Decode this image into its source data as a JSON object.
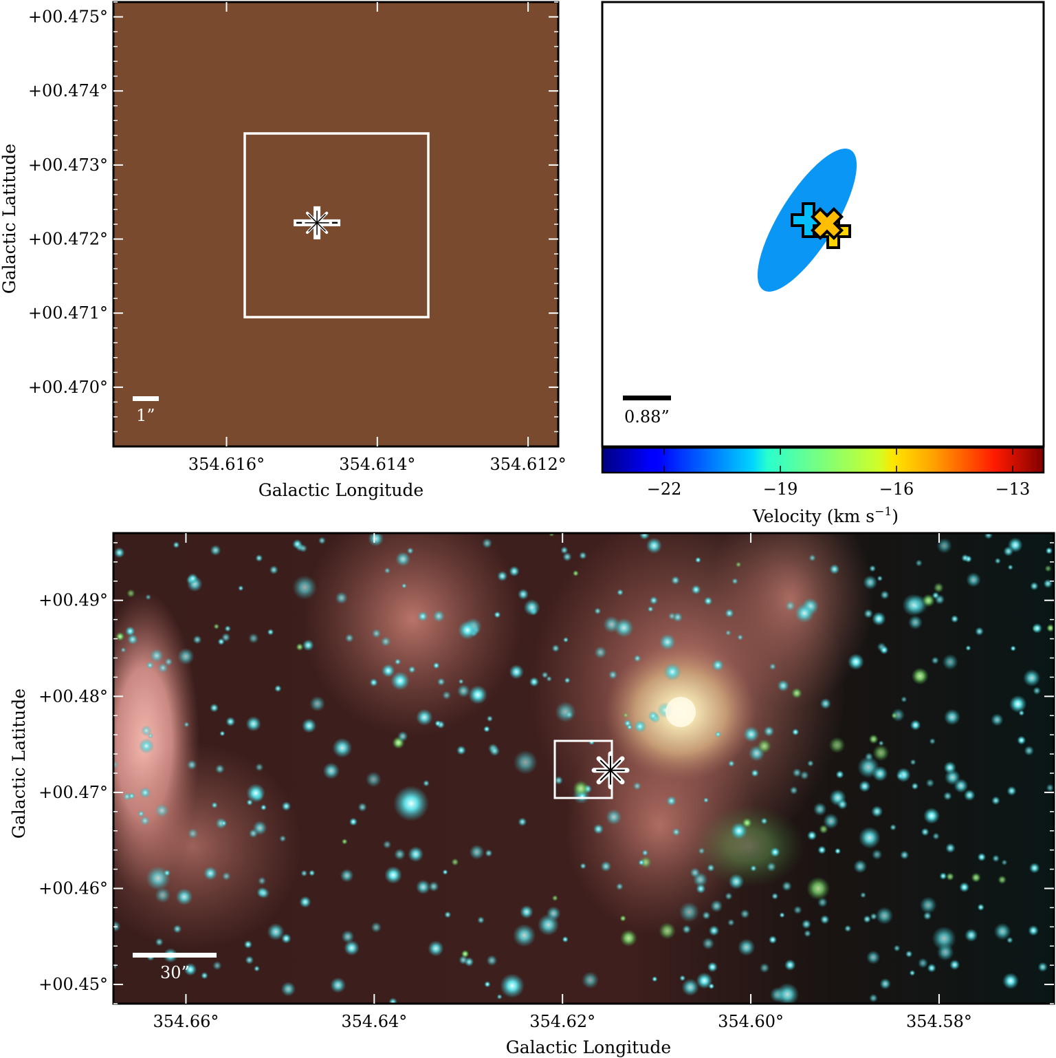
{
  "colors": {
    "background": "#ffffff",
    "frame": "#000000",
    "tick_minor": "#ffffff",
    "marker_plus_fill": "#0a8ad8",
    "marker_x_fill": "#f5a623",
    "ellipse_fill": "#0a96f5"
  },
  "chart_data": [
    {
      "panel": "top-left",
      "type": "image",
      "xlabel": "Galactic Longitude",
      "ylabel": "Galactic Latitude",
      "xlim": [
        354.6175,
        354.6116
      ],
      "ylim": [
        0.4692,
        0.4752
      ],
      "x_ticks": [
        354.616,
        354.614,
        354.612
      ],
      "x_tick_labels": [
        "354.616°",
        "354.614°",
        "354.612°"
      ],
      "y_ticks": [
        0.47,
        0.471,
        0.472,
        0.473,
        0.474,
        0.475
      ],
      "y_tick_labels": [
        "+00.470°",
        "+00.471°",
        "+00.472°",
        "+00.473°",
        "+00.474°",
        "+00.475°"
      ],
      "scale_bar_label": "1”",
      "box": {
        "l_min": 354.6134,
        "l_max": 354.6159,
        "b_min": 0.471,
        "b_max": 0.4735
      },
      "markers": [
        {
          "symbol": "plus",
          "l": 354.6148,
          "b": 0.47222
        },
        {
          "symbol": "asterisk",
          "l": 354.6148,
          "b": 0.47222
        }
      ],
      "colormap_icon": "rgb-composite-image"
    },
    {
      "panel": "top-right",
      "type": "scatter",
      "scale_bar_label": "0.88”",
      "colorbar": {
        "label": "Velocity (km s",
        "label_sup": "−1",
        "label_close": ")",
        "vmin": -23.6,
        "vmax": -12.2,
        "ticks": [
          -22,
          -19,
          -16,
          -13
        ],
        "tick_labels": [
          "−22",
          "−19",
          "−16",
          "−13"
        ],
        "colormap": "jet"
      },
      "ellipse": {
        "cx": 0.5,
        "cy": 0.5,
        "description": "maser position uncertainty"
      },
      "markers": [
        {
          "symbol": "plus",
          "velocity": -20.0
        },
        {
          "symbol": "x",
          "velocity": -15.5
        },
        {
          "symbol": "plus",
          "velocity": -15.8
        }
      ]
    },
    {
      "panel": "bottom",
      "type": "image",
      "xlabel": "Galactic Longitude",
      "ylabel": "Galactic Latitude",
      "xlim": [
        354.6677,
        354.5678
      ],
      "ylim": [
        0.448,
        0.497
      ],
      "x_ticks": [
        354.66,
        354.64,
        354.62,
        354.6,
        354.58
      ],
      "x_tick_labels": [
        "354.66°",
        "354.64°",
        "354.62°",
        "354.60°",
        "354.58°"
      ],
      "y_ticks": [
        0.45,
        0.46,
        0.47,
        0.48,
        0.49
      ],
      "y_tick_labels": [
        "+00.45°",
        "+00.46°",
        "+00.47°",
        "+00.48°",
        "+00.49°"
      ],
      "scale_bar_label": "30”",
      "box": {
        "l_min": 354.6118,
        "l_max": 354.618,
        "b_min": 0.4693,
        "b_max": 0.4755
      },
      "markers": [
        {
          "symbol": "asterisk",
          "l": 354.6149,
          "b": 0.4723
        }
      ],
      "colormap_icon": "rgb-composite-image"
    }
  ]
}
